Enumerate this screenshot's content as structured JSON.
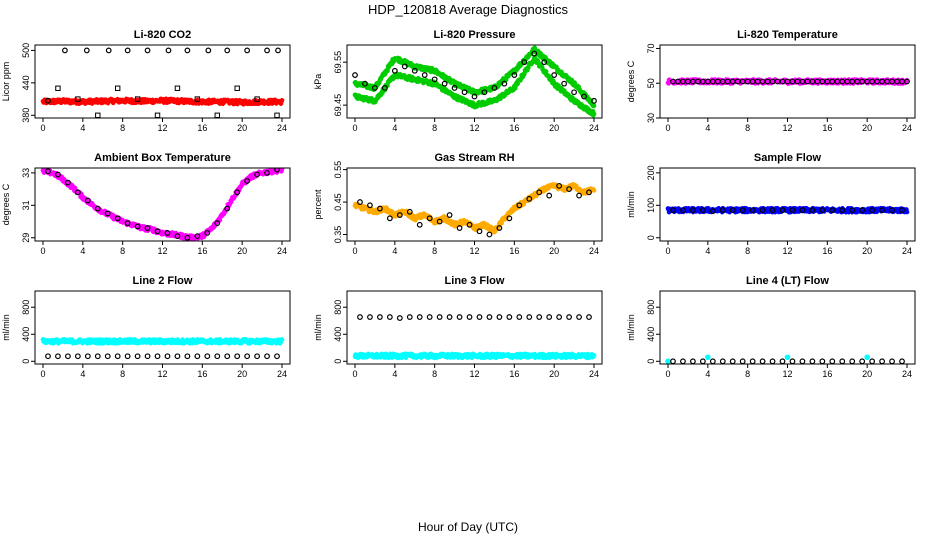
{
  "title": "HDP_120818  Average Diagnostics",
  "global_xlabel": "Hour of Day (UTC)",
  "x_ticks": [
    "0",
    "4",
    "8",
    "12",
    "16",
    "20",
    "24"
  ],
  "chart_data": [
    {
      "type": "scatter",
      "title": "Li-820 CO2",
      "ylabel": "Licor ppm",
      "ylim": [
        375,
        510
      ],
      "xlim": [
        0,
        24
      ],
      "y_ticks": [
        "380",
        "440",
        "500"
      ],
      "y_tick_values": [
        380,
        440,
        500
      ],
      "series": [
        {
          "color": "#ff0000",
          "shape": "dense-band",
          "x": [
            0,
            2,
            4,
            6,
            8,
            10,
            12,
            14,
            16,
            18,
            20,
            22,
            24
          ],
          "values": [
            405,
            406,
            405,
            406,
            407,
            406,
            407,
            406,
            405,
            405,
            404,
            405,
            405
          ]
        },
        {
          "color": "#000000",
          "shape": "open-circle",
          "x": [
            0.5,
            2.2,
            4.4,
            6.6,
            8.5,
            10.5,
            12.6,
            14.5,
            16.6,
            18.5,
            20.5,
            22.5,
            23.6
          ],
          "values": [
            407,
            500,
            500,
            500,
            500,
            500,
            500,
            500,
            500,
            500,
            500,
            500,
            500
          ]
        },
        {
          "color": "#000000",
          "shape": "open-square",
          "x": [
            1.5,
            3.5,
            5.5,
            7.5,
            9.5,
            11.5,
            13.5,
            15.5,
            17.5,
            19.5,
            21.5,
            23.5
          ],
          "values": [
            430,
            410,
            380,
            430,
            410,
            380,
            430,
            410,
            380,
            430,
            410,
            380
          ]
        }
      ]
    },
    {
      "type": "scatter",
      "title": "Li-820 Pressure",
      "ylabel": "kPa",
      "ylim": [
        69.42,
        69.59
      ],
      "xlim": [
        0,
        24
      ],
      "y_ticks": [
        "69.45",
        "69.55"
      ],
      "y_tick_values": [
        69.45,
        69.55
      ],
      "series": [
        {
          "color": "#00cc00",
          "shape": "dense-band",
          "x": [
            0,
            2,
            4,
            6,
            8,
            10,
            12,
            14,
            16,
            18,
            20,
            22,
            24
          ],
          "values": [
            69.5,
            69.49,
            69.56,
            69.54,
            69.53,
            69.5,
            69.48,
            69.49,
            69.53,
            69.58,
            69.54,
            69.5,
            69.45
          ]
        },
        {
          "color": "#00cc00",
          "shape": "dense-band",
          "x": [
            0,
            2,
            4,
            6,
            8,
            10,
            12,
            14,
            16,
            18,
            20,
            22,
            24
          ],
          "values": [
            69.47,
            69.46,
            69.52,
            69.51,
            69.5,
            69.47,
            69.45,
            69.46,
            69.49,
            69.56,
            69.5,
            69.46,
            69.43
          ]
        },
        {
          "color": "#000000",
          "shape": "open-circle",
          "x": [
            0,
            1,
            2,
            3,
            4,
            5,
            6,
            7,
            8,
            9,
            10,
            11,
            12,
            13,
            14,
            15,
            16,
            17,
            18,
            19,
            20,
            21,
            22,
            23,
            24
          ],
          "values": [
            69.52,
            69.5,
            69.49,
            69.49,
            69.53,
            69.54,
            69.53,
            69.52,
            69.51,
            69.5,
            69.49,
            69.48,
            69.47,
            69.48,
            69.49,
            69.5,
            69.52,
            69.55,
            69.57,
            69.55,
            69.52,
            69.5,
            69.48,
            69.47,
            69.46
          ]
        }
      ]
    },
    {
      "type": "scatter",
      "title": "Li-820 Temperature",
      "ylabel": "degrees C",
      "ylim": [
        30,
        72
      ],
      "xlim": [
        0,
        24
      ],
      "y_ticks": [
        "30",
        "50",
        "70"
      ],
      "y_tick_values": [
        30,
        50,
        70
      ],
      "series": [
        {
          "color": "#ff00ff",
          "shape": "dense-band",
          "x": [
            0,
            4,
            8,
            12,
            16,
            20,
            24
          ],
          "values": [
            51,
            51,
            51,
            51,
            51,
            51,
            51
          ]
        },
        {
          "color": "#000000",
          "shape": "open-circle",
          "x": [
            0.5,
            1,
            1.5,
            2,
            2.5,
            3,
            3.5,
            4,
            4.5,
            5,
            5.5,
            6,
            6.5,
            7,
            7.5,
            8,
            8.5,
            9,
            9.5,
            10,
            10.5,
            11,
            11.5,
            12,
            12.5,
            13,
            13.5,
            14,
            14.5,
            15,
            15.5,
            16,
            16.5,
            17,
            17.5,
            18,
            18.5,
            19,
            19.5,
            20,
            20.5,
            21,
            21.5,
            22,
            22.5,
            23,
            23.5,
            24
          ],
          "values": [
            51,
            51,
            51,
            51,
            51,
            51,
            51,
            51,
            51,
            51,
            51,
            51,
            51,
            51,
            51,
            51,
            51,
            51,
            51,
            51,
            51,
            51,
            51,
            51,
            51,
            51,
            51,
            51,
            51,
            51,
            51,
            51,
            51,
            51,
            51,
            51,
            51,
            51,
            51,
            51,
            51,
            51,
            51,
            51,
            51,
            51,
            51,
            51
          ]
        }
      ]
    },
    {
      "type": "scatter",
      "title": "Ambient Box Temperature",
      "ylabel": "degrees C",
      "ylim": [
        28.8,
        33.3
      ],
      "xlim": [
        0,
        24
      ],
      "y_ticks": [
        "29",
        "31",
        "33"
      ],
      "y_tick_values": [
        29,
        31,
        33
      ],
      "series": [
        {
          "color": "#ff00ff",
          "shape": "dense-band",
          "x": [
            0,
            1,
            2,
            3,
            4,
            5,
            6,
            7,
            8,
            9,
            10,
            11,
            12,
            13,
            14,
            15,
            16,
            17,
            18,
            19,
            20,
            21,
            22,
            23,
            24
          ],
          "values": [
            33.1,
            33.0,
            32.6,
            32.1,
            31.5,
            31.0,
            30.6,
            30.3,
            30.0,
            29.8,
            29.6,
            29.5,
            29.3,
            29.2,
            29.1,
            29.0,
            29.1,
            29.6,
            30.4,
            31.4,
            32.3,
            32.8,
            33.0,
            33.1,
            33.2
          ]
        },
        {
          "color": "#000000",
          "shape": "open-circle",
          "x": [
            0.5,
            1.5,
            2.5,
            3.5,
            4.5,
            5.5,
            6.5,
            7.5,
            8.5,
            9.5,
            10.5,
            11.5,
            12.5,
            13.5,
            14.5,
            15.5,
            16.5,
            17.5,
            18.5,
            19.5,
            20.5,
            21.5,
            22.5,
            23.5
          ],
          "values": [
            33.1,
            32.9,
            32.4,
            31.8,
            31.3,
            30.8,
            30.5,
            30.2,
            29.9,
            29.7,
            29.6,
            29.4,
            29.3,
            29.1,
            29.0,
            29.1,
            29.3,
            29.9,
            30.8,
            31.8,
            32.5,
            32.9,
            33.0,
            33.2
          ]
        }
      ]
    },
    {
      "type": "scatter",
      "title": "Gas Stream RH",
      "ylabel": "percent",
      "ylim": [
        0.33,
        0.555
      ],
      "xlim": [
        0,
        24
      ],
      "y_ticks": [
        "0.35",
        "0.45",
        "0.55"
      ],
      "y_tick_values": [
        0.35,
        0.45,
        0.55
      ],
      "series": [
        {
          "color": "#ffaa00",
          "shape": "dense-band",
          "x": [
            0,
            1,
            2,
            3,
            4,
            5,
            6,
            7,
            8,
            9,
            10,
            11,
            12,
            13,
            14,
            15,
            16,
            17,
            18,
            19,
            20,
            21,
            22,
            23,
            24
          ],
          "values": [
            0.44,
            0.43,
            0.42,
            0.43,
            0.41,
            0.42,
            0.4,
            0.41,
            0.39,
            0.4,
            0.38,
            0.39,
            0.37,
            0.38,
            0.36,
            0.4,
            0.43,
            0.45,
            0.47,
            0.49,
            0.5,
            0.49,
            0.5,
            0.48,
            0.49
          ]
        },
        {
          "color": "#000000",
          "shape": "open-circle",
          "x": [
            0.5,
            1.5,
            2.5,
            3.5,
            4.5,
            5.5,
            6.5,
            7.5,
            8.5,
            9.5,
            10.5,
            11.5,
            12.5,
            13.5,
            14.5,
            15.5,
            16.5,
            17.5,
            18.5,
            19.5,
            20.5,
            21.5,
            22.5,
            23.5
          ],
          "values": [
            0.45,
            0.44,
            0.43,
            0.4,
            0.41,
            0.42,
            0.38,
            0.4,
            0.39,
            0.41,
            0.37,
            0.38,
            0.36,
            0.35,
            0.37,
            0.4,
            0.44,
            0.46,
            0.48,
            0.47,
            0.5,
            0.49,
            0.47,
            0.48
          ]
        }
      ]
    },
    {
      "type": "scatter",
      "title": "Sample Flow",
      "ylabel": "ml/min",
      "ylim": [
        -10,
        215
      ],
      "xlim": [
        0,
        24
      ],
      "y_ticks": [
        "0",
        "100",
        "200"
      ],
      "y_tick_values": [
        0,
        100,
        200
      ],
      "series": [
        {
          "color": "#0000ff",
          "shape": "dense-band",
          "x": [
            0,
            4,
            8,
            12,
            16,
            20,
            24
          ],
          "values": [
            85,
            85,
            85,
            85,
            85,
            85,
            85
          ]
        },
        {
          "color": "#000000",
          "shape": "open-circle",
          "x": [
            0.5,
            1.5,
            2.5,
            3.5,
            4.5,
            5.5,
            6.5,
            7.5,
            8.5,
            9.5,
            10.5,
            11.5,
            12.5,
            13.5,
            14.5,
            15.5,
            16.5,
            17.5,
            18.5,
            19.5,
            20.5,
            21.5,
            22.5,
            23.5
          ],
          "values": [
            85,
            85,
            85,
            85,
            82,
            85,
            85,
            85,
            85,
            85,
            85,
            85,
            85,
            85,
            85,
            85,
            85,
            85,
            85,
            85,
            85,
            85,
            85,
            85
          ]
        }
      ]
    },
    {
      "type": "scatter",
      "title": "Line 2 Flow",
      "ylabel": "ml/min",
      "ylim": [
        -40,
        1040
      ],
      "xlim": [
        0,
        24
      ],
      "y_ticks": [
        "0",
        "400",
        "800"
      ],
      "y_tick_values": [
        0,
        400,
        800
      ],
      "series": [
        {
          "color": "#00ffff",
          "shape": "dense-band",
          "x": [
            0,
            4,
            8,
            12,
            16,
            20,
            24
          ],
          "values": [
            295,
            295,
            295,
            295,
            295,
            295,
            295
          ]
        },
        {
          "color": "#000000",
          "shape": "open-circle",
          "x": [
            0.5,
            1.5,
            2.5,
            3.5,
            4.5,
            5.5,
            6.5,
            7.5,
            8.5,
            9.5,
            10.5,
            11.5,
            12.5,
            13.5,
            14.5,
            15.5,
            16.5,
            17.5,
            18.5,
            19.5,
            20.5,
            21.5,
            22.5,
            23.5
          ],
          "values": [
            75,
            75,
            75,
            75,
            75,
            75,
            75,
            75,
            75,
            75,
            75,
            75,
            75,
            75,
            75,
            75,
            75,
            75,
            75,
            75,
            75,
            75,
            75,
            75
          ]
        }
      ]
    },
    {
      "type": "scatter",
      "title": "Line 3 Flow",
      "ylabel": "ml/min",
      "ylim": [
        -40,
        1040
      ],
      "xlim": [
        0,
        24
      ],
      "y_ticks": [
        "0",
        "400",
        "800"
      ],
      "y_tick_values": [
        0,
        400,
        800
      ],
      "series": [
        {
          "color": "#00ffff",
          "shape": "dense-band",
          "x": [
            0,
            4,
            8,
            12,
            16,
            20,
            24
          ],
          "values": [
            80,
            80,
            80,
            80,
            80,
            80,
            80
          ]
        },
        {
          "color": "#000000",
          "shape": "open-circle",
          "x": [
            0.5,
            1.5,
            2.5,
            3.5,
            4.5,
            5.5,
            6.5,
            7.5,
            8.5,
            9.5,
            10.5,
            11.5,
            12.5,
            13.5,
            14.5,
            15.5,
            16.5,
            17.5,
            18.5,
            19.5,
            20.5,
            21.5,
            22.5,
            23.5
          ],
          "values": [
            655,
            655,
            655,
            655,
            640,
            655,
            655,
            655,
            655,
            655,
            655,
            655,
            655,
            655,
            655,
            655,
            655,
            655,
            655,
            655,
            655,
            655,
            655,
            655
          ]
        }
      ]
    },
    {
      "type": "scatter",
      "title": "Line 4 (LT) Flow",
      "ylabel": "ml/min",
      "ylim": [
        -40,
        1040
      ],
      "xlim": [
        0,
        24
      ],
      "y_ticks": [
        "0",
        "400",
        "800"
      ],
      "y_tick_values": [
        0,
        400,
        800
      ],
      "series": [
        {
          "color": "#00ffff",
          "shape": "filled-circle",
          "x": [
            0,
            4,
            12,
            20
          ],
          "values": [
            0,
            60,
            60,
            60
          ]
        },
        {
          "color": "#000000",
          "shape": "open-circle",
          "x": [
            0.5,
            1.5,
            2.5,
            3.5,
            4.5,
            5.5,
            6.5,
            7.5,
            8.5,
            9.5,
            10.5,
            11.5,
            12.5,
            13.5,
            14.5,
            15.5,
            16.5,
            17.5,
            18.5,
            19.5,
            20.5,
            21.5,
            22.5,
            23.5
          ],
          "values": [
            0,
            0,
            0,
            0,
            0,
            0,
            0,
            0,
            0,
            0,
            0,
            0,
            0,
            0,
            0,
            0,
            0,
            0,
            0,
            0,
            0,
            0,
            0,
            0
          ]
        }
      ]
    }
  ]
}
